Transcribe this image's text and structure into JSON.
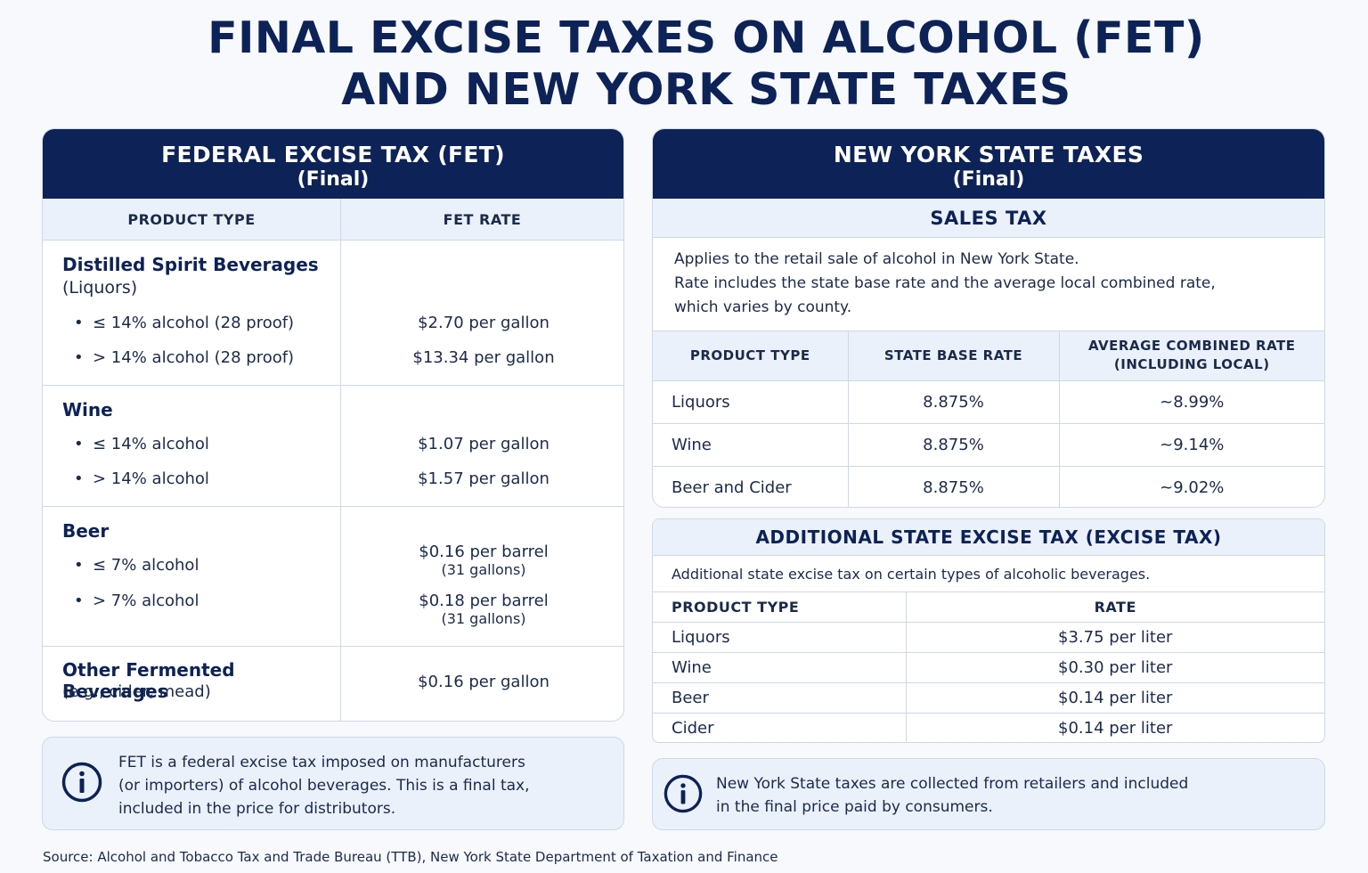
{
  "title": {
    "line1": "FINAL EXCISE TAXES ON ALCOHOL (FET)",
    "line2": "AND NEW YORK STATE TAXES"
  },
  "fet": {
    "heading": "FEDERAL EXCISE TAX (FET)",
    "subheading": "(Final)",
    "col_product": "PRODUCT TYPE",
    "col_rate": "FET RATE",
    "spirits": {
      "name": "Distilled Spirit Beverages",
      "sub": "(Liquors)",
      "items": [
        {
          "label": "≤ 14% alcohol (28 proof)",
          "rate": "$2.70 per gallon"
        },
        {
          "label": "> 14% alcohol (28 proof)",
          "rate": "$13.34 per gallon"
        }
      ]
    },
    "wine": {
      "name": "Wine",
      "items": [
        {
          "label": "≤ 14% alcohol",
          "rate": "$1.07 per gallon"
        },
        {
          "label": "> 14% alcohol",
          "rate": "$1.57 per gallon"
        }
      ]
    },
    "beer": {
      "name": "Beer",
      "items": [
        {
          "label": "≤ 7% alcohol",
          "rate": "$0.16 per barrel",
          "note": "(31 gallons)"
        },
        {
          "label": "> 7% alcohol",
          "rate": "$0.18 per barrel",
          "note": "(31 gallons)"
        }
      ]
    },
    "other": {
      "name": "Other Fermented Beverages",
      "sub": "(e.g., cider, mead)",
      "rate": "$0.16 per gallon"
    },
    "info": {
      "line1": "FET is a federal excise tax imposed on manufacturers",
      "line2": "(or importers) of alcohol beverages. This is a final tax,",
      "line3": "included in the price for distributors."
    }
  },
  "ny": {
    "heading": "NEW YORK STATE TAXES",
    "subheading": "(Final)",
    "sales_tax": {
      "heading": "SALES TAX",
      "desc1": "Applies to the retail sale of alcohol in New York State.",
      "desc2": "Rate includes the state base rate and the average local combined rate,",
      "desc3": "which varies by county.",
      "col_product": "PRODUCT TYPE",
      "col_base": "STATE BASE RATE",
      "col_avg1": "AVERAGE COMBINED RATE",
      "col_avg2": "(INCLUDING LOCAL)",
      "rows": [
        {
          "product": "Liquors",
          "base": "8.875%",
          "avg": "~8.99%"
        },
        {
          "product": "Wine",
          "base": "8.875%",
          "avg": "~9.14%"
        },
        {
          "product": "Beer and Cider",
          "base": "8.875%",
          "avg": "~9.02%"
        }
      ]
    },
    "excise": {
      "heading": "ADDITIONAL STATE EXCISE TAX (EXCISE TAX)",
      "desc": "Additional state excise tax on certain types of alcoholic beverages.",
      "col_product": "PRODUCT TYPE",
      "col_rate": "RATE",
      "rows": [
        {
          "product": "Liquors",
          "rate": "$3.75 per liter"
        },
        {
          "product": "Wine",
          "rate": "$0.30 per liter"
        },
        {
          "product": "Beer",
          "rate": "$0.14 per liter"
        },
        {
          "product": "Cider",
          "rate": "$0.14 per liter"
        }
      ]
    },
    "info": {
      "line1": "New York State taxes are collected from retailers and included",
      "line2": "in the final price paid by consumers."
    }
  },
  "source": "Source: Alcohol and Tobacco Tax and Trade Bureau (TTB), New York State Department of Taxation and Finance",
  "colors": {
    "navy": "#0d2256",
    "light_blue": "#eaf1fb",
    "border": "#cdd8e8"
  },
  "icons": [
    "info-icon"
  ]
}
